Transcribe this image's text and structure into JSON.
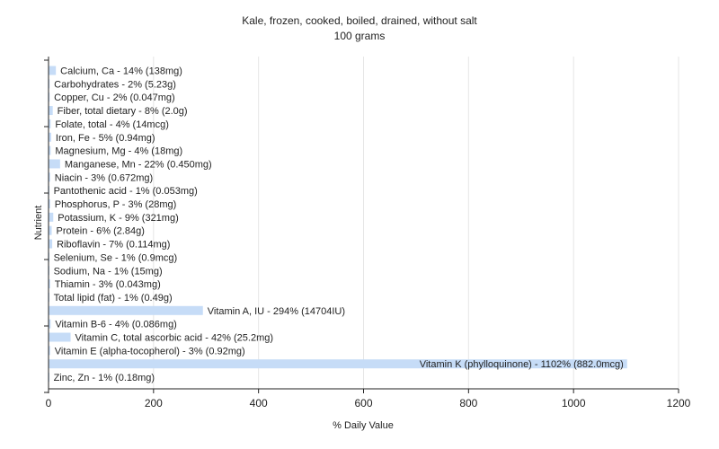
{
  "chart_data": {
    "type": "bar",
    "orientation": "horizontal",
    "title": "Kale, frozen, cooked, boiled, drained, without salt",
    "subtitle": "100 grams",
    "xlabel": "% Daily Value",
    "ylabel": "Nutrient",
    "xlim": [
      0,
      1200
    ],
    "xticks": [
      "0",
      "200",
      "400",
      "600",
      "800",
      "1000",
      "1200"
    ],
    "grid": "vertical",
    "bar_color": "#c6dcf7",
    "categories": [
      "Calcium, Ca",
      "Carbohydrates",
      "Copper, Cu",
      "Fiber, total dietary",
      "Folate, total",
      "Iron, Fe",
      "Magnesium, Mg",
      "Manganese, Mn",
      "Niacin",
      "Pantothenic acid",
      "Phosphorus, P",
      "Potassium, K",
      "Protein",
      "Riboflavin",
      "Selenium, Se",
      "Sodium, Na",
      "Thiamin",
      "Total lipid (fat)",
      "Vitamin A, IU",
      "Vitamin B-6",
      "Vitamin C, total ascorbic acid",
      "Vitamin E (alpha-tocopherol)",
      "Vitamin K (phylloquinone)",
      "Zinc, Zn"
    ],
    "values": [
      14,
      2,
      2,
      8,
      4,
      5,
      4,
      22,
      3,
      1,
      3,
      9,
      6,
      7,
      1,
      1,
      3,
      1,
      294,
      4,
      42,
      3,
      1102,
      1
    ],
    "labels": [
      "Calcium, Ca - 14% (138mg)",
      "Carbohydrates - 2% (5.23g)",
      "Copper, Cu - 2% (0.047mg)",
      "Fiber, total dietary - 8% (2.0g)",
      "Folate, total - 4% (14mcg)",
      "Iron, Fe - 5% (0.94mg)",
      "Magnesium, Mg - 4% (18mg)",
      "Manganese, Mn - 22% (0.450mg)",
      "Niacin - 3% (0.672mg)",
      "Pantothenic acid - 1% (0.053mg)",
      "Phosphorus, P - 3% (28mg)",
      "Potassium, K - 9% (321mg)",
      "Protein - 6% (2.84g)",
      "Riboflavin - 7% (0.114mg)",
      "Selenium, Se - 1% (0.9mcg)",
      "Sodium, Na - 1% (15mg)",
      "Thiamin - 3% (0.043mg)",
      "Total lipid (fat) - 1% (0.49g)",
      "Vitamin A, IU - 294% (14704IU)",
      "Vitamin B-6 - 4% (0.086mg)",
      "Vitamin C, total ascorbic acid - 42% (25.2mg)",
      "Vitamin E (alpha-tocopherol) - 3% (0.92mg)",
      "Vitamin K (phylloquinone) - 1102% (882.0mcg)",
      "Zinc, Zn - 1% (0.18mg)"
    ]
  }
}
